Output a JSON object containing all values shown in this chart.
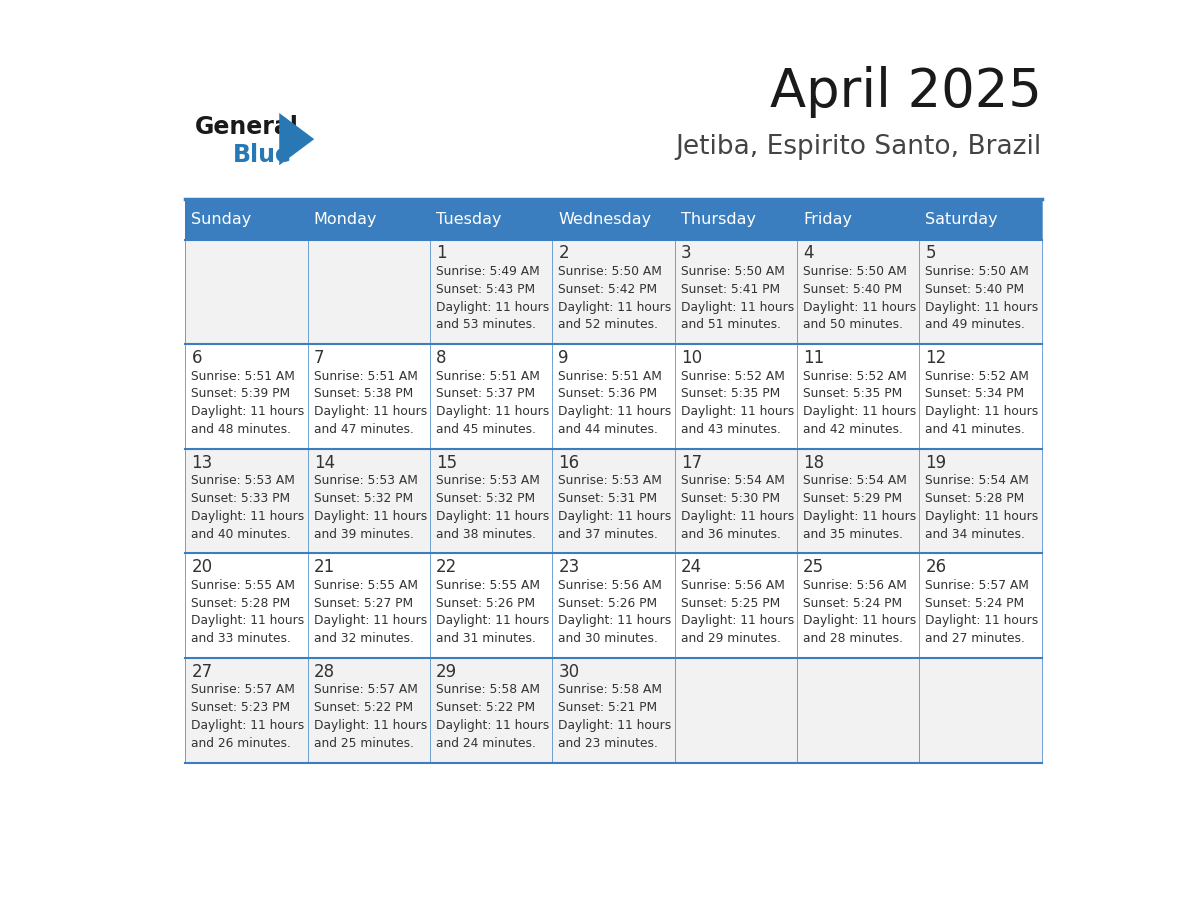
{
  "title": "April 2025",
  "subtitle": "Jetiba, Espirito Santo, Brazil",
  "days_of_week": [
    "Sunday",
    "Monday",
    "Tuesday",
    "Wednesday",
    "Thursday",
    "Friday",
    "Saturday"
  ],
  "header_bg": "#3A7EBF",
  "header_text": "#FFFFFF",
  "cell_bg_light": "#F2F2F2",
  "cell_bg_white": "#FFFFFF",
  "border_color": "#3A7EBF",
  "text_color": "#333333",
  "calendar_data": [
    [
      {
        "day": "",
        "sunrise": "",
        "sunset": "",
        "daylight": ""
      },
      {
        "day": "",
        "sunrise": "",
        "sunset": "",
        "daylight": ""
      },
      {
        "day": "1",
        "sunrise": "5:49 AM",
        "sunset": "5:43 PM",
        "daylight": "11 hours and 53 minutes."
      },
      {
        "day": "2",
        "sunrise": "5:50 AM",
        "sunset": "5:42 PM",
        "daylight": "11 hours and 52 minutes."
      },
      {
        "day": "3",
        "sunrise": "5:50 AM",
        "sunset": "5:41 PM",
        "daylight": "11 hours and 51 minutes."
      },
      {
        "day": "4",
        "sunrise": "5:50 AM",
        "sunset": "5:40 PM",
        "daylight": "11 hours and 50 minutes."
      },
      {
        "day": "5",
        "sunrise": "5:50 AM",
        "sunset": "5:40 PM",
        "daylight": "11 hours and 49 minutes."
      }
    ],
    [
      {
        "day": "6",
        "sunrise": "5:51 AM",
        "sunset": "5:39 PM",
        "daylight": "11 hours and 48 minutes."
      },
      {
        "day": "7",
        "sunrise": "5:51 AM",
        "sunset": "5:38 PM",
        "daylight": "11 hours and 47 minutes."
      },
      {
        "day": "8",
        "sunrise": "5:51 AM",
        "sunset": "5:37 PM",
        "daylight": "11 hours and 45 minutes."
      },
      {
        "day": "9",
        "sunrise": "5:51 AM",
        "sunset": "5:36 PM",
        "daylight": "11 hours and 44 minutes."
      },
      {
        "day": "10",
        "sunrise": "5:52 AM",
        "sunset": "5:35 PM",
        "daylight": "11 hours and 43 minutes."
      },
      {
        "day": "11",
        "sunrise": "5:52 AM",
        "sunset": "5:35 PM",
        "daylight": "11 hours and 42 minutes."
      },
      {
        "day": "12",
        "sunrise": "5:52 AM",
        "sunset": "5:34 PM",
        "daylight": "11 hours and 41 minutes."
      }
    ],
    [
      {
        "day": "13",
        "sunrise": "5:53 AM",
        "sunset": "5:33 PM",
        "daylight": "11 hours and 40 minutes."
      },
      {
        "day": "14",
        "sunrise": "5:53 AM",
        "sunset": "5:32 PM",
        "daylight": "11 hours and 39 minutes."
      },
      {
        "day": "15",
        "sunrise": "5:53 AM",
        "sunset": "5:32 PM",
        "daylight": "11 hours and 38 minutes."
      },
      {
        "day": "16",
        "sunrise": "5:53 AM",
        "sunset": "5:31 PM",
        "daylight": "11 hours and 37 minutes."
      },
      {
        "day": "17",
        "sunrise": "5:54 AM",
        "sunset": "5:30 PM",
        "daylight": "11 hours and 36 minutes."
      },
      {
        "day": "18",
        "sunrise": "5:54 AM",
        "sunset": "5:29 PM",
        "daylight": "11 hours and 35 minutes."
      },
      {
        "day": "19",
        "sunrise": "5:54 AM",
        "sunset": "5:28 PM",
        "daylight": "11 hours and 34 minutes."
      }
    ],
    [
      {
        "day": "20",
        "sunrise": "5:55 AM",
        "sunset": "5:28 PM",
        "daylight": "11 hours and 33 minutes."
      },
      {
        "day": "21",
        "sunrise": "5:55 AM",
        "sunset": "5:27 PM",
        "daylight": "11 hours and 32 minutes."
      },
      {
        "day": "22",
        "sunrise": "5:55 AM",
        "sunset": "5:26 PM",
        "daylight": "11 hours and 31 minutes."
      },
      {
        "day": "23",
        "sunrise": "5:56 AM",
        "sunset": "5:26 PM",
        "daylight": "11 hours and 30 minutes."
      },
      {
        "day": "24",
        "sunrise": "5:56 AM",
        "sunset": "5:25 PM",
        "daylight": "11 hours and 29 minutes."
      },
      {
        "day": "25",
        "sunrise": "5:56 AM",
        "sunset": "5:24 PM",
        "daylight": "11 hours and 28 minutes."
      },
      {
        "day": "26",
        "sunrise": "5:57 AM",
        "sunset": "5:24 PM",
        "daylight": "11 hours and 27 minutes."
      }
    ],
    [
      {
        "day": "27",
        "sunrise": "5:57 AM",
        "sunset": "5:23 PM",
        "daylight": "11 hours and 26 minutes."
      },
      {
        "day": "28",
        "sunrise": "5:57 AM",
        "sunset": "5:22 PM",
        "daylight": "11 hours and 25 minutes."
      },
      {
        "day": "29",
        "sunrise": "5:58 AM",
        "sunset": "5:22 PM",
        "daylight": "11 hours and 24 minutes."
      },
      {
        "day": "30",
        "sunrise": "5:58 AM",
        "sunset": "5:21 PM",
        "daylight": "11 hours and 23 minutes."
      },
      {
        "day": "",
        "sunrise": "",
        "sunset": "",
        "daylight": ""
      },
      {
        "day": "",
        "sunrise": "",
        "sunset": "",
        "daylight": ""
      },
      {
        "day": "",
        "sunrise": "",
        "sunset": "",
        "daylight": ""
      }
    ]
  ]
}
